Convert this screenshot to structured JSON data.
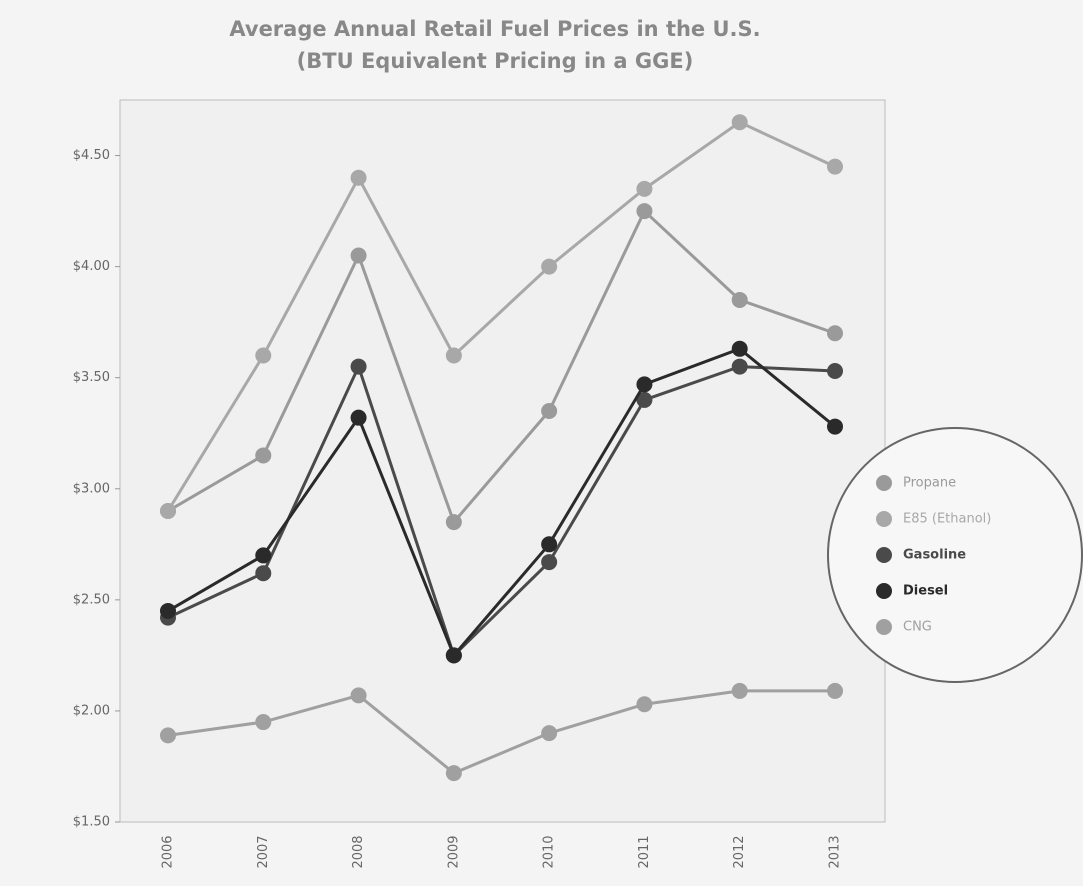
{
  "chart_data": {
    "type": "line",
    "title": "Average Annual Retail Fuel Prices in the U.S.",
    "subtitle": "(BTU Equivalent Pricing in a GGE)",
    "categories": [
      "2006",
      "2007",
      "2008",
      "2009",
      "2010",
      "2011",
      "2012",
      "2013"
    ],
    "series": [
      {
        "name": "Propane",
        "color": "#9a9a9a",
        "values": [
          2.9,
          3.15,
          4.05,
          2.85,
          3.35,
          4.25,
          3.85,
          3.7
        ]
      },
      {
        "name": "E85 (Ethanol)",
        "color": "#a8a8a8",
        "values": [
          2.9,
          3.6,
          4.4,
          3.6,
          4.0,
          4.35,
          4.65,
          4.45
        ]
      },
      {
        "name": "Gasoline",
        "color": "#4a4a4a",
        "values": [
          2.42,
          2.62,
          3.55,
          2.25,
          2.67,
          3.4,
          3.55,
          3.53
        ]
      },
      {
        "name": "Diesel",
        "color": "#2a2a2a",
        "values": [
          2.45,
          2.7,
          3.32,
          2.25,
          2.75,
          3.47,
          3.63,
          3.28
        ]
      },
      {
        "name": "CNG",
        "color": "#a0a0a0",
        "values": [
          1.89,
          1.95,
          2.07,
          1.72,
          1.9,
          2.03,
          2.09,
          2.09
        ]
      }
    ],
    "ylim": [
      1.5,
      4.75
    ],
    "yticks": [
      {
        "value": 1.5,
        "label": "$1.50"
      },
      {
        "value": 2.0,
        "label": "$2.00"
      },
      {
        "value": 2.5,
        "label": "$2.50"
      },
      {
        "value": 3.0,
        "label": "$3.00"
      },
      {
        "value": 3.5,
        "label": "$3.50"
      },
      {
        "value": 4.0,
        "label": "$4.00"
      },
      {
        "value": 4.5,
        "label": "$4.50"
      }
    ],
    "legend": "right"
  }
}
